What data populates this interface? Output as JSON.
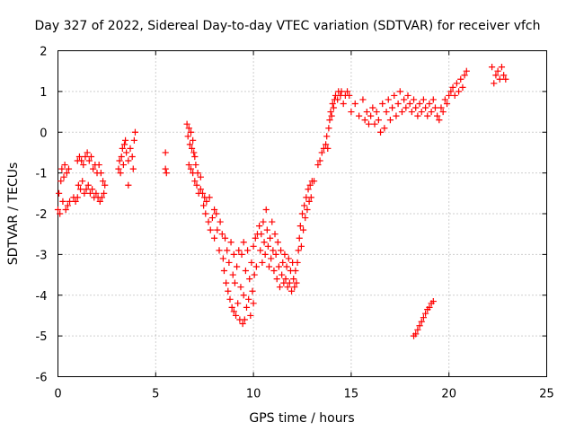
{
  "chart_data": {
    "type": "scatter",
    "title": "Day 327 of 2022, Sidereal Day-to-day VTEC variation (SDTVAR) for receiver vfch",
    "xlabel": "GPS time / hours",
    "ylabel": "SDTVAR / TECUs",
    "xlim": [
      0,
      25
    ],
    "ylim": [
      -6,
      2
    ],
    "xticks": [
      "0",
      "5",
      "10",
      "15",
      "20",
      "25"
    ],
    "yticks": [
      "2",
      "1",
      "0",
      "-1",
      "-2",
      "-3",
      "-4",
      "-5",
      "-6"
    ],
    "grid": true,
    "marker": "+",
    "color": "#ff0000",
    "series": [
      {
        "name": "SDTVAR",
        "points": [
          [
            0.0,
            -1.9
          ],
          [
            0.05,
            -1.5
          ],
          [
            0.1,
            -2.0
          ],
          [
            0.15,
            -1.2
          ],
          [
            0.2,
            -0.9
          ],
          [
            0.25,
            -1.7
          ],
          [
            0.3,
            -1.1
          ],
          [
            0.35,
            -0.8
          ],
          [
            0.4,
            -1.9
          ],
          [
            0.45,
            -1.0
          ],
          [
            0.5,
            -1.8
          ],
          [
            0.55,
            -0.9
          ],
          [
            0.6,
            -1.7
          ],
          [
            0.8,
            -1.6
          ],
          [
            0.9,
            -1.7
          ],
          [
            1.0,
            -1.6
          ],
          [
            1.0,
            -0.7
          ],
          [
            1.05,
            -1.3
          ],
          [
            1.1,
            -0.6
          ],
          [
            1.15,
            -1.4
          ],
          [
            1.2,
            -0.7
          ],
          [
            1.25,
            -1.2
          ],
          [
            1.3,
            -0.8
          ],
          [
            1.35,
            -1.5
          ],
          [
            1.4,
            -0.6
          ],
          [
            1.45,
            -1.4
          ],
          [
            1.5,
            -0.5
          ],
          [
            1.55,
            -1.3
          ],
          [
            1.6,
            -0.7
          ],
          [
            1.65,
            -1.5
          ],
          [
            1.7,
            -0.6
          ],
          [
            1.75,
            -1.4
          ],
          [
            1.8,
            -0.9
          ],
          [
            1.85,
            -1.6
          ],
          [
            1.9,
            -0.8
          ],
          [
            1.95,
            -1.5
          ],
          [
            2.0,
            -1.0
          ],
          [
            2.05,
            -1.6
          ],
          [
            2.1,
            -0.8
          ],
          [
            2.15,
            -1.7
          ],
          [
            2.2,
            -1.0
          ],
          [
            2.25,
            -1.6
          ],
          [
            2.3,
            -1.2
          ],
          [
            2.35,
            -1.5
          ],
          [
            2.4,
            -1.3
          ],
          [
            3.1,
            -0.9
          ],
          [
            3.15,
            -0.7
          ],
          [
            3.2,
            -1.0
          ],
          [
            3.25,
            -0.6
          ],
          [
            3.3,
            -0.4
          ],
          [
            3.35,
            -0.8
          ],
          [
            3.4,
            -0.3
          ],
          [
            3.45,
            -0.2
          ],
          [
            3.5,
            -0.5
          ],
          [
            3.6,
            -0.7
          ],
          [
            3.6,
            -1.3
          ],
          [
            3.7,
            -0.4
          ],
          [
            3.8,
            -0.6
          ],
          [
            3.85,
            -0.9
          ],
          [
            3.9,
            -0.2
          ],
          [
            3.95,
            0.0
          ],
          [
            5.5,
            -0.5
          ],
          [
            5.5,
            -0.9
          ],
          [
            5.55,
            -1.0
          ],
          [
            6.6,
            0.2
          ],
          [
            6.65,
            -0.1
          ],
          [
            6.7,
            0.1
          ],
          [
            6.7,
            -0.8
          ],
          [
            6.75,
            -0.3
          ],
          [
            6.8,
            0.0
          ],
          [
            6.8,
            -0.9
          ],
          [
            6.85,
            -0.4
          ],
          [
            6.9,
            -0.2
          ],
          [
            6.9,
            -1.0
          ],
          [
            6.95,
            -0.5
          ],
          [
            7.0,
            -0.6
          ],
          [
            7.0,
            -1.2
          ],
          [
            7.05,
            -0.8
          ],
          [
            7.1,
            -1.3
          ],
          [
            7.15,
            -1.0
          ],
          [
            7.2,
            -1.5
          ],
          [
            7.3,
            -1.1
          ],
          [
            7.3,
            -1.4
          ],
          [
            7.4,
            -1.5
          ],
          [
            7.45,
            -1.8
          ],
          [
            7.5,
            -1.6
          ],
          [
            7.55,
            -2.0
          ],
          [
            7.6,
            -1.7
          ],
          [
            7.7,
            -2.2
          ],
          [
            7.75,
            -1.6
          ],
          [
            7.8,
            -2.4
          ],
          [
            7.9,
            -2.1
          ],
          [
            8.0,
            -1.9
          ],
          [
            8.0,
            -2.6
          ],
          [
            8.1,
            -2.0
          ],
          [
            8.15,
            -2.4
          ],
          [
            8.25,
            -2.9
          ],
          [
            8.3,
            -2.2
          ],
          [
            8.4,
            -2.5
          ],
          [
            8.45,
            -3.1
          ],
          [
            8.5,
            -3.4
          ],
          [
            8.55,
            -2.6
          ],
          [
            8.6,
            -3.7
          ],
          [
            8.65,
            -2.9
          ],
          [
            8.7,
            -3.9
          ],
          [
            8.75,
            -3.2
          ],
          [
            8.8,
            -4.1
          ],
          [
            8.85,
            -2.7
          ],
          [
            8.9,
            -4.3
          ],
          [
            8.95,
            -3.5
          ],
          [
            9.0,
            -4.4
          ],
          [
            9.0,
            -3.0
          ],
          [
            9.05,
            -3.7
          ],
          [
            9.1,
            -4.5
          ],
          [
            9.15,
            -3.3
          ],
          [
            9.2,
            -4.2
          ],
          [
            9.25,
            -2.9
          ],
          [
            9.3,
            -4.6
          ],
          [
            9.35,
            -3.8
          ],
          [
            9.4,
            -3.0
          ],
          [
            9.45,
            -4.7
          ],
          [
            9.5,
            -2.7
          ],
          [
            9.5,
            -4.0
          ],
          [
            9.55,
            -4.6
          ],
          [
            9.6,
            -3.4
          ],
          [
            9.65,
            -4.3
          ],
          [
            9.7,
            -2.9
          ],
          [
            9.75,
            -4.1
          ],
          [
            9.8,
            -3.6
          ],
          [
            9.85,
            -4.5
          ],
          [
            9.9,
            -3.2
          ],
          [
            9.95,
            -3.9
          ],
          [
            10.0,
            -4.2
          ],
          [
            10.0,
            -2.8
          ],
          [
            10.05,
            -3.5
          ],
          [
            10.1,
            -2.6
          ],
          [
            10.15,
            -3.3
          ],
          [
            10.2,
            -2.5
          ],
          [
            10.3,
            -2.3
          ],
          [
            10.35,
            -2.9
          ],
          [
            10.4,
            -2.5
          ],
          [
            10.45,
            -3.2
          ],
          [
            10.5,
            -2.2
          ],
          [
            10.55,
            -2.7
          ],
          [
            10.6,
            -3.0
          ],
          [
            10.65,
            -1.9
          ],
          [
            10.7,
            -2.4
          ],
          [
            10.75,
            -2.8
          ],
          [
            10.8,
            -3.3
          ],
          [
            10.85,
            -2.6
          ],
          [
            10.9,
            -3.1
          ],
          [
            10.95,
            -2.2
          ],
          [
            11.0,
            -2.9
          ],
          [
            11.05,
            -3.4
          ],
          [
            11.1,
            -2.5
          ],
          [
            11.15,
            -3.0
          ],
          [
            11.2,
            -3.6
          ],
          [
            11.25,
            -2.7
          ],
          [
            11.3,
            -3.3
          ],
          [
            11.35,
            -3.8
          ],
          [
            11.4,
            -2.9
          ],
          [
            11.45,
            -3.5
          ],
          [
            11.5,
            -3.2
          ],
          [
            11.55,
            -3.7
          ],
          [
            11.6,
            -3.0
          ],
          [
            11.65,
            -3.6
          ],
          [
            11.7,
            -3.3
          ],
          [
            11.75,
            -3.8
          ],
          [
            11.8,
            -3.1
          ],
          [
            11.85,
            -3.7
          ],
          [
            11.9,
            -3.4
          ],
          [
            11.95,
            -3.9
          ],
          [
            12.0,
            -3.2
          ],
          [
            12.05,
            -3.6
          ],
          [
            12.1,
            -3.8
          ],
          [
            12.15,
            -3.4
          ],
          [
            12.2,
            -3.7
          ],
          [
            12.25,
            -3.2
          ],
          [
            12.3,
            -2.9
          ],
          [
            12.35,
            -2.6
          ],
          [
            12.4,
            -2.3
          ],
          [
            12.45,
            -2.8
          ],
          [
            12.5,
            -2.0
          ],
          [
            12.55,
            -2.4
          ],
          [
            12.6,
            -1.8
          ],
          [
            12.65,
            -2.1
          ],
          [
            12.7,
            -1.6
          ],
          [
            12.75,
            -1.9
          ],
          [
            12.8,
            -1.4
          ],
          [
            12.85,
            -1.7
          ],
          [
            12.9,
            -1.3
          ],
          [
            12.95,
            -1.6
          ],
          [
            13.0,
            -1.2
          ],
          [
            13.1,
            -1.2
          ],
          [
            13.3,
            -0.8
          ],
          [
            13.4,
            -0.7
          ],
          [
            13.5,
            -0.5
          ],
          [
            13.6,
            -0.4
          ],
          [
            13.7,
            -0.3
          ],
          [
            13.75,
            -0.1
          ],
          [
            13.8,
            -0.4
          ],
          [
            13.85,
            0.1
          ],
          [
            13.9,
            0.3
          ],
          [
            13.95,
            0.5
          ],
          [
            14.0,
            0.4
          ],
          [
            14.05,
            0.7
          ],
          [
            14.1,
            0.6
          ],
          [
            14.15,
            0.8
          ],
          [
            14.2,
            0.9
          ],
          [
            14.3,
            0.8
          ],
          [
            14.35,
            1.0
          ],
          [
            14.45,
            0.9
          ],
          [
            14.5,
            1.0
          ],
          [
            14.6,
            0.7
          ],
          [
            14.7,
            0.9
          ],
          [
            14.8,
            1.0
          ],
          [
            14.9,
            0.9
          ],
          [
            15.0,
            0.5
          ],
          [
            15.2,
            0.7
          ],
          [
            15.4,
            0.4
          ],
          [
            15.6,
            0.8
          ],
          [
            15.7,
            0.3
          ],
          [
            15.8,
            0.5
          ],
          [
            15.9,
            0.2
          ],
          [
            16.0,
            0.4
          ],
          [
            16.1,
            0.6
          ],
          [
            16.2,
            0.2
          ],
          [
            16.3,
            0.5
          ],
          [
            16.4,
            0.3
          ],
          [
            16.5,
            0.0
          ],
          [
            16.6,
            0.7
          ],
          [
            16.7,
            0.1
          ],
          [
            16.8,
            0.5
          ],
          [
            16.9,
            0.8
          ],
          [
            17.0,
            0.3
          ],
          [
            17.1,
            0.6
          ],
          [
            17.2,
            0.9
          ],
          [
            17.3,
            0.4
          ],
          [
            17.4,
            0.7
          ],
          [
            17.5,
            1.0
          ],
          [
            17.6,
            0.5
          ],
          [
            17.7,
            0.8
          ],
          [
            17.8,
            0.6
          ],
          [
            17.9,
            0.9
          ],
          [
            18.0,
            0.7
          ],
          [
            18.1,
            0.5
          ],
          [
            18.2,
            0.8
          ],
          [
            18.3,
            0.6
          ],
          [
            18.4,
            0.4
          ],
          [
            18.5,
            0.7
          ],
          [
            18.6,
            0.5
          ],
          [
            18.7,
            0.8
          ],
          [
            18.8,
            0.6
          ],
          [
            18.9,
            0.4
          ],
          [
            19.0,
            0.7
          ],
          [
            19.1,
            0.5
          ],
          [
            19.2,
            0.8
          ],
          [
            19.3,
            0.6
          ],
          [
            19.4,
            0.4
          ],
          [
            19.5,
            0.3
          ],
          [
            19.6,
            0.6
          ],
          [
            19.7,
            0.5
          ],
          [
            19.8,
            0.8
          ],
          [
            19.9,
            0.7
          ],
          [
            20.0,
            0.9
          ],
          [
            20.1,
            1.0
          ],
          [
            20.2,
            1.1
          ],
          [
            20.3,
            0.9
          ],
          [
            20.4,
            1.2
          ],
          [
            20.5,
            1.0
          ],
          [
            20.6,
            1.3
          ],
          [
            20.7,
            1.1
          ],
          [
            20.8,
            1.4
          ],
          [
            20.9,
            1.5
          ],
          [
            18.2,
            -5.0
          ],
          [
            18.3,
            -4.95
          ],
          [
            18.4,
            -4.85
          ],
          [
            18.5,
            -4.75
          ],
          [
            18.6,
            -4.65
          ],
          [
            18.7,
            -4.55
          ],
          [
            18.8,
            -4.45
          ],
          [
            18.9,
            -4.35
          ],
          [
            19.0,
            -4.3
          ],
          [
            19.1,
            -4.2
          ],
          [
            19.2,
            -4.15
          ],
          [
            22.2,
            1.6
          ],
          [
            22.3,
            1.2
          ],
          [
            22.4,
            1.4
          ],
          [
            22.5,
            1.5
          ],
          [
            22.6,
            1.3
          ],
          [
            22.7,
            1.6
          ],
          [
            22.8,
            1.4
          ],
          [
            22.9,
            1.3
          ]
        ]
      }
    ]
  }
}
